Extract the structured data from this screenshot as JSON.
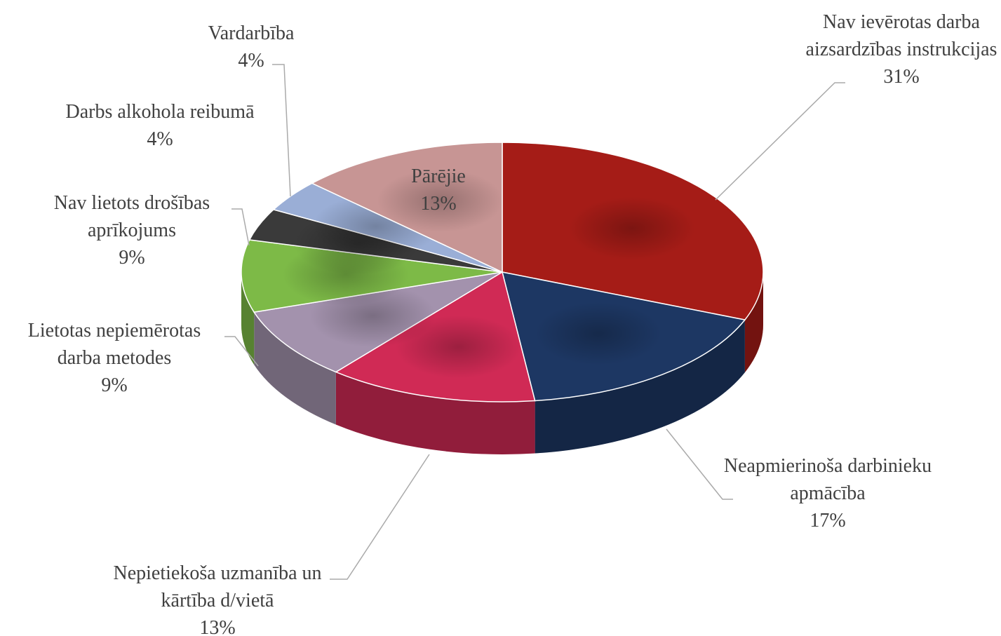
{
  "chart_data": {
    "type": "pie3d",
    "categories": [
      "Nav ievērotas darba aizsardzības instrukcijas",
      "Neapmierinoša darbinieku apmācība",
      "Nepietiekoša uzmanība un kārtība d/vietā",
      "Lietotas nepiemērotas darba metodes",
      "Nav lietots drošības aprīkojums",
      "Darbs alkohola reibumā",
      "Vardarbība",
      "Pārējie"
    ],
    "values": [
      31,
      17,
      13,
      9,
      9,
      4,
      4,
      13
    ],
    "value_labels": [
      "31%",
      "17%",
      "13%",
      "9%",
      "9%",
      "4%",
      "4%",
      "13%"
    ],
    "colors": [
      "#a51c17",
      "#1d3763",
      "#d02a55",
      "#a392ad",
      "#7dba47",
      "#3a3a3a",
      "#9aaed6",
      "#c79594"
    ]
  }
}
